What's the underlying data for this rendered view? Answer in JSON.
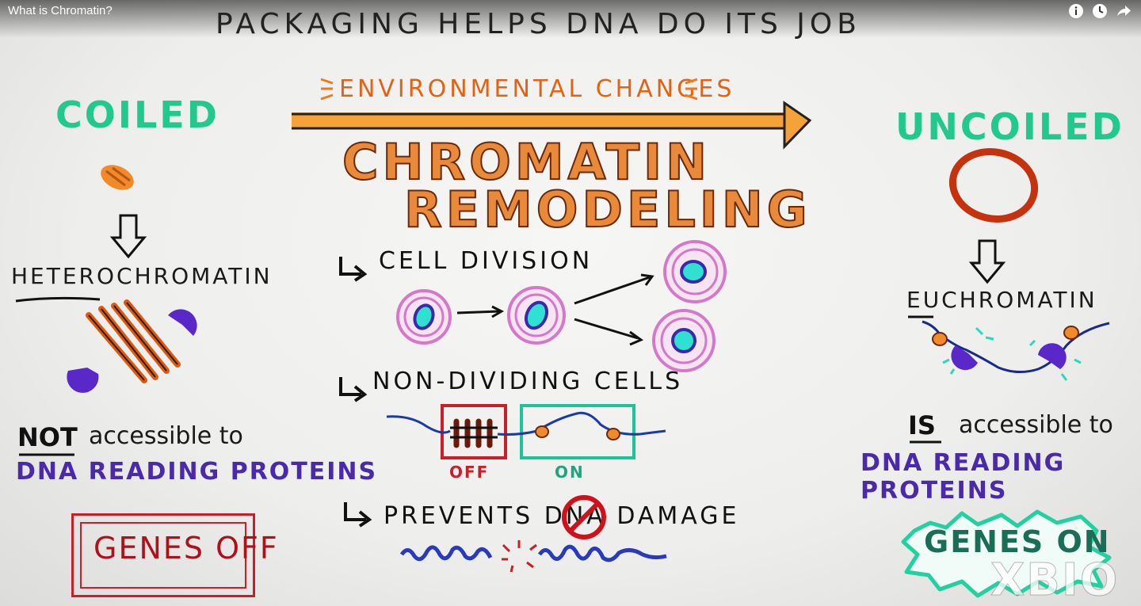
{
  "window": {
    "video_title": "What is Chromatin?",
    "icons": [
      "info-icon",
      "watch-later-icon",
      "share-icon"
    ]
  },
  "slide": {
    "heading": "PACKAGING HELPS DNA DO ITS JOB",
    "environmental_changes": "ENVIRONMENTAL CHANGES",
    "chromatin_title": "CHROMATIN",
    "remodeling_title": "REMODELING",
    "left": {
      "state": "COILED",
      "type": "HETEROCHROMATIN",
      "not_word": "NOT",
      "accessibility": "accessible to",
      "proteins": "DNA READING PROTEINS",
      "genes": "GENES OFF"
    },
    "right": {
      "state": "UNCOILED",
      "type": "EUCHROMATIN",
      "is_word": "IS",
      "accessibility": "accessible to",
      "proteins": "DNA READING PROTEINS",
      "genes": "GENES ON"
    },
    "center": {
      "cell_division": "CELL DIVISION",
      "non_dividing": "NON-DIVIDING CELLS",
      "off_label": "OFF",
      "on_label": "ON",
      "prevents_damage": "PREVENTS DNA DAMAGE"
    },
    "watermark": "XBIO"
  },
  "colors": {
    "green": "#22c98e",
    "orange": "#e88a3a",
    "purple": "#4a2aa8",
    "red": "#c8202a",
    "pink": "#d478c8"
  }
}
